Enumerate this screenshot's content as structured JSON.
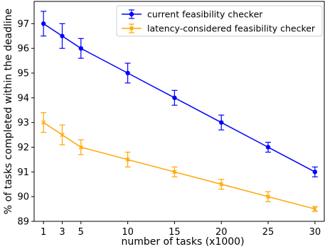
{
  "chart_data": {
    "type": "line",
    "title": "",
    "xlabel": "number of tasks (x1000)",
    "ylabel": "% of tasks completed within the deadline",
    "x": [
      1,
      3,
      5,
      10,
      15,
      20,
      25,
      30
    ],
    "x_ticks": [
      "1",
      "3",
      "5",
      "10",
      "15",
      "20",
      "25",
      "30"
    ],
    "xlim": [
      0,
      31
    ],
    "ylim": [
      89,
      97.9
    ],
    "y_ticks": [
      "89",
      "90",
      "91",
      "92",
      "93",
      "94",
      "95",
      "96",
      "97"
    ],
    "grid": false,
    "legend_position": "top-right",
    "series": [
      {
        "name": "current feasibility checker",
        "color": "#0000ff",
        "marker": "circle",
        "values": [
          97.0,
          96.5,
          96.0,
          95.0,
          94.0,
          93.0,
          92.0,
          91.0
        ],
        "errors": [
          0.5,
          0.5,
          0.4,
          0.4,
          0.3,
          0.3,
          0.2,
          0.2
        ]
      },
      {
        "name": "latency-considered feasibility checker",
        "color": "#ffa500",
        "marker": "x",
        "values": [
          93.0,
          92.5,
          92.0,
          91.5,
          91.0,
          90.5,
          90.0,
          89.5
        ],
        "errors": [
          0.4,
          0.4,
          0.3,
          0.3,
          0.2,
          0.2,
          0.2,
          0.1
        ]
      }
    ]
  }
}
